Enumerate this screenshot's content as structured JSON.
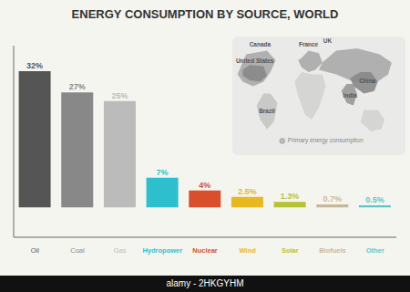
{
  "chart_data": {
    "type": "bar",
    "title": "ENERGY CONSUMPTION BY SOURCE, WORLD",
    "categories": [
      "Oil",
      "Coal",
      "Gas",
      "Hydropower",
      "Nuclear",
      "Wind",
      "Solar",
      "Biofuels",
      "Other"
    ],
    "values": [
      32,
      27,
      25,
      7,
      4,
      2.5,
      1.3,
      0.7,
      0.5
    ],
    "value_labels": [
      "32%",
      "27%",
      "25%",
      "7%",
      "4%",
      "2.5%",
      "1.3%",
      "0.7%",
      "0.5%"
    ],
    "colors": [
      "#555555",
      "#888888",
      "#bbbbbb",
      "#2dbfcd",
      "#d94f2b",
      "#e8b820",
      "#b5c234",
      "#c8b89a",
      "#5bc8c8"
    ],
    "ylim": [
      -7,
      38
    ],
    "yticks": [],
    "data_labels": true,
    "tick_labels": "x",
    "grid": false,
    "annotations": [
      "United States",
      "Canada",
      "France",
      "UK",
      "China",
      "India",
      "Brazil",
      "Primary energy consumption",
      "alamy - 2HKGYHM"
    ]
  }
}
